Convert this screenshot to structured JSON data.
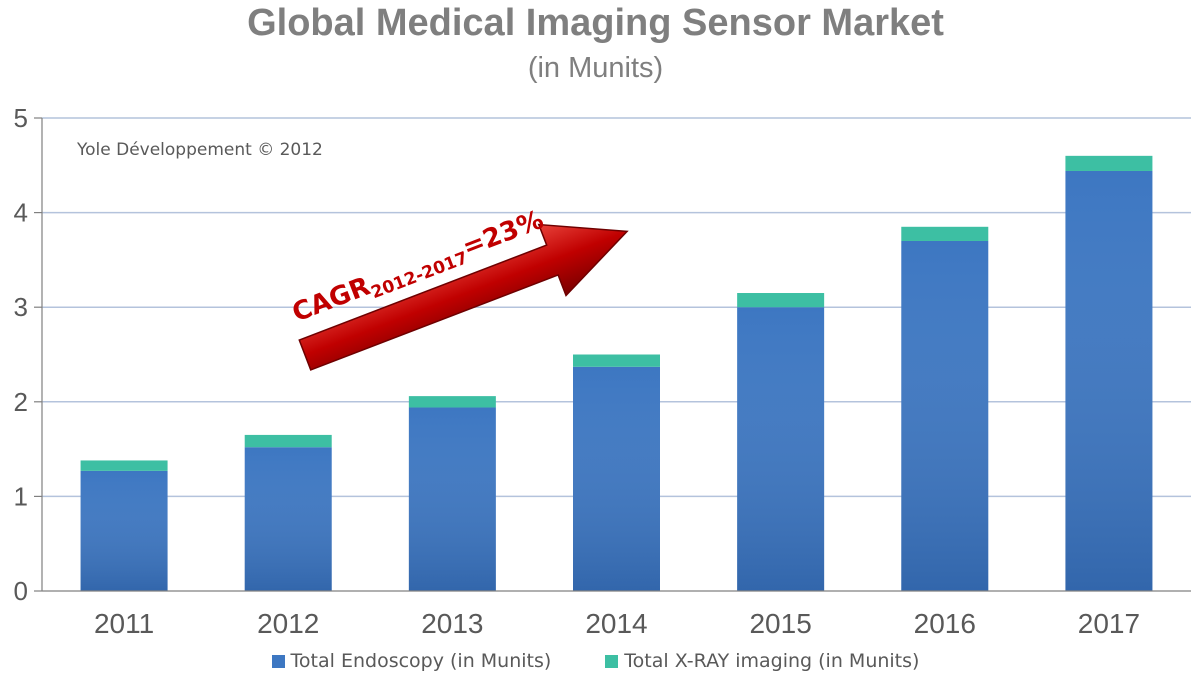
{
  "chart_data": {
    "type": "bar",
    "stacked": true,
    "title": "Global Medical Imaging Sensor Market",
    "subtitle": "(in Munits)",
    "categories": [
      "2011",
      "2012",
      "2013",
      "2014",
      "2015",
      "2016",
      "2017"
    ],
    "series": [
      {
        "name": "Total Endoscopy (in Munits)",
        "color": "#3d77c2",
        "values": [
          1.27,
          1.52,
          1.94,
          2.37,
          3.0,
          3.7,
          4.44
        ]
      },
      {
        "name": "Total X-RAY imaging (in Munits)",
        "color": "#3dbfa3",
        "values": [
          0.11,
          0.13,
          0.12,
          0.13,
          0.15,
          0.15,
          0.16
        ]
      }
    ],
    "ylim": [
      0,
      5
    ],
    "yticks": [
      "0",
      "1",
      "2",
      "3",
      "4",
      "5"
    ],
    "grid": true,
    "legend_position": "bottom",
    "annotations": {
      "source": "Yole Développement © 2012",
      "cagr_main": "CAGR",
      "cagr_sub": "2012-2017",
      "cagr_value": "=23%"
    }
  }
}
